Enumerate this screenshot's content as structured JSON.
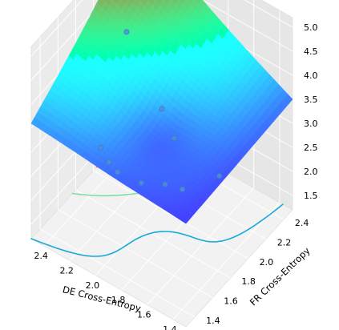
{
  "chart_data": {
    "type": "surface-3d",
    "axes": {
      "x": {
        "label": "DE Cross-Entropy",
        "ticks": [
          "1.4",
          "1.6",
          "1.8",
          "2.0",
          "2.2",
          "2.4"
        ],
        "range": [
          1.3,
          2.5
        ]
      },
      "y": {
        "label": "FR Cross-Entropy",
        "ticks": [
          "1.4",
          "1.6",
          "1.8",
          "2.0",
          "2.2",
          "2.4"
        ],
        "range": [
          1.3,
          2.5
        ]
      },
      "z": {
        "label": "",
        "ticks": [
          "1.5",
          "2.0",
          "2.5",
          "3.0",
          "3.5",
          "4.0",
          "4.5",
          "5.0"
        ],
        "range": [
          1.2,
          5.2
        ]
      }
    },
    "colormap": "rainbow",
    "grid": true,
    "surface": {
      "min_value": 3.2,
      "max_value": 5.1,
      "corner_values": {
        "near": 3.35,
        "left": 3.6,
        "back": 5.1,
        "right": 3.5
      }
    },
    "scatter_points": [
      {
        "x": 1.35,
        "y": 1.75,
        "z": 3.35
      },
      {
        "x": 1.5,
        "y": 1.55,
        "z": 3.25
      },
      {
        "x": 1.6,
        "y": 1.5,
        "z": 3.3
      },
      {
        "x": 1.75,
        "y": 1.45,
        "z": 3.2
      },
      {
        "x": 1.9,
        "y": 1.4,
        "z": 3.3
      },
      {
        "x": 2.0,
        "y": 1.45,
        "z": 3.25
      },
      {
        "x": 2.1,
        "y": 1.5,
        "z": 3.3
      },
      {
        "x": 2.45,
        "y": 2.3,
        "z": 3.55
      },
      {
        "x": 1.7,
        "y": 1.75,
        "z": 3.6
      },
      {
        "x": 1.9,
        "y": 1.9,
        "z": 3.6
      }
    ],
    "contour_levels": [
      {
        "level": 3.3,
        "color": "#3c5ad0"
      },
      {
        "level": 3.6,
        "color": "#1aa9d8"
      },
      {
        "level": 4.2,
        "color": "#7ee0a0"
      },
      {
        "level": 4.6,
        "color": "#ff7a3a"
      }
    ]
  }
}
